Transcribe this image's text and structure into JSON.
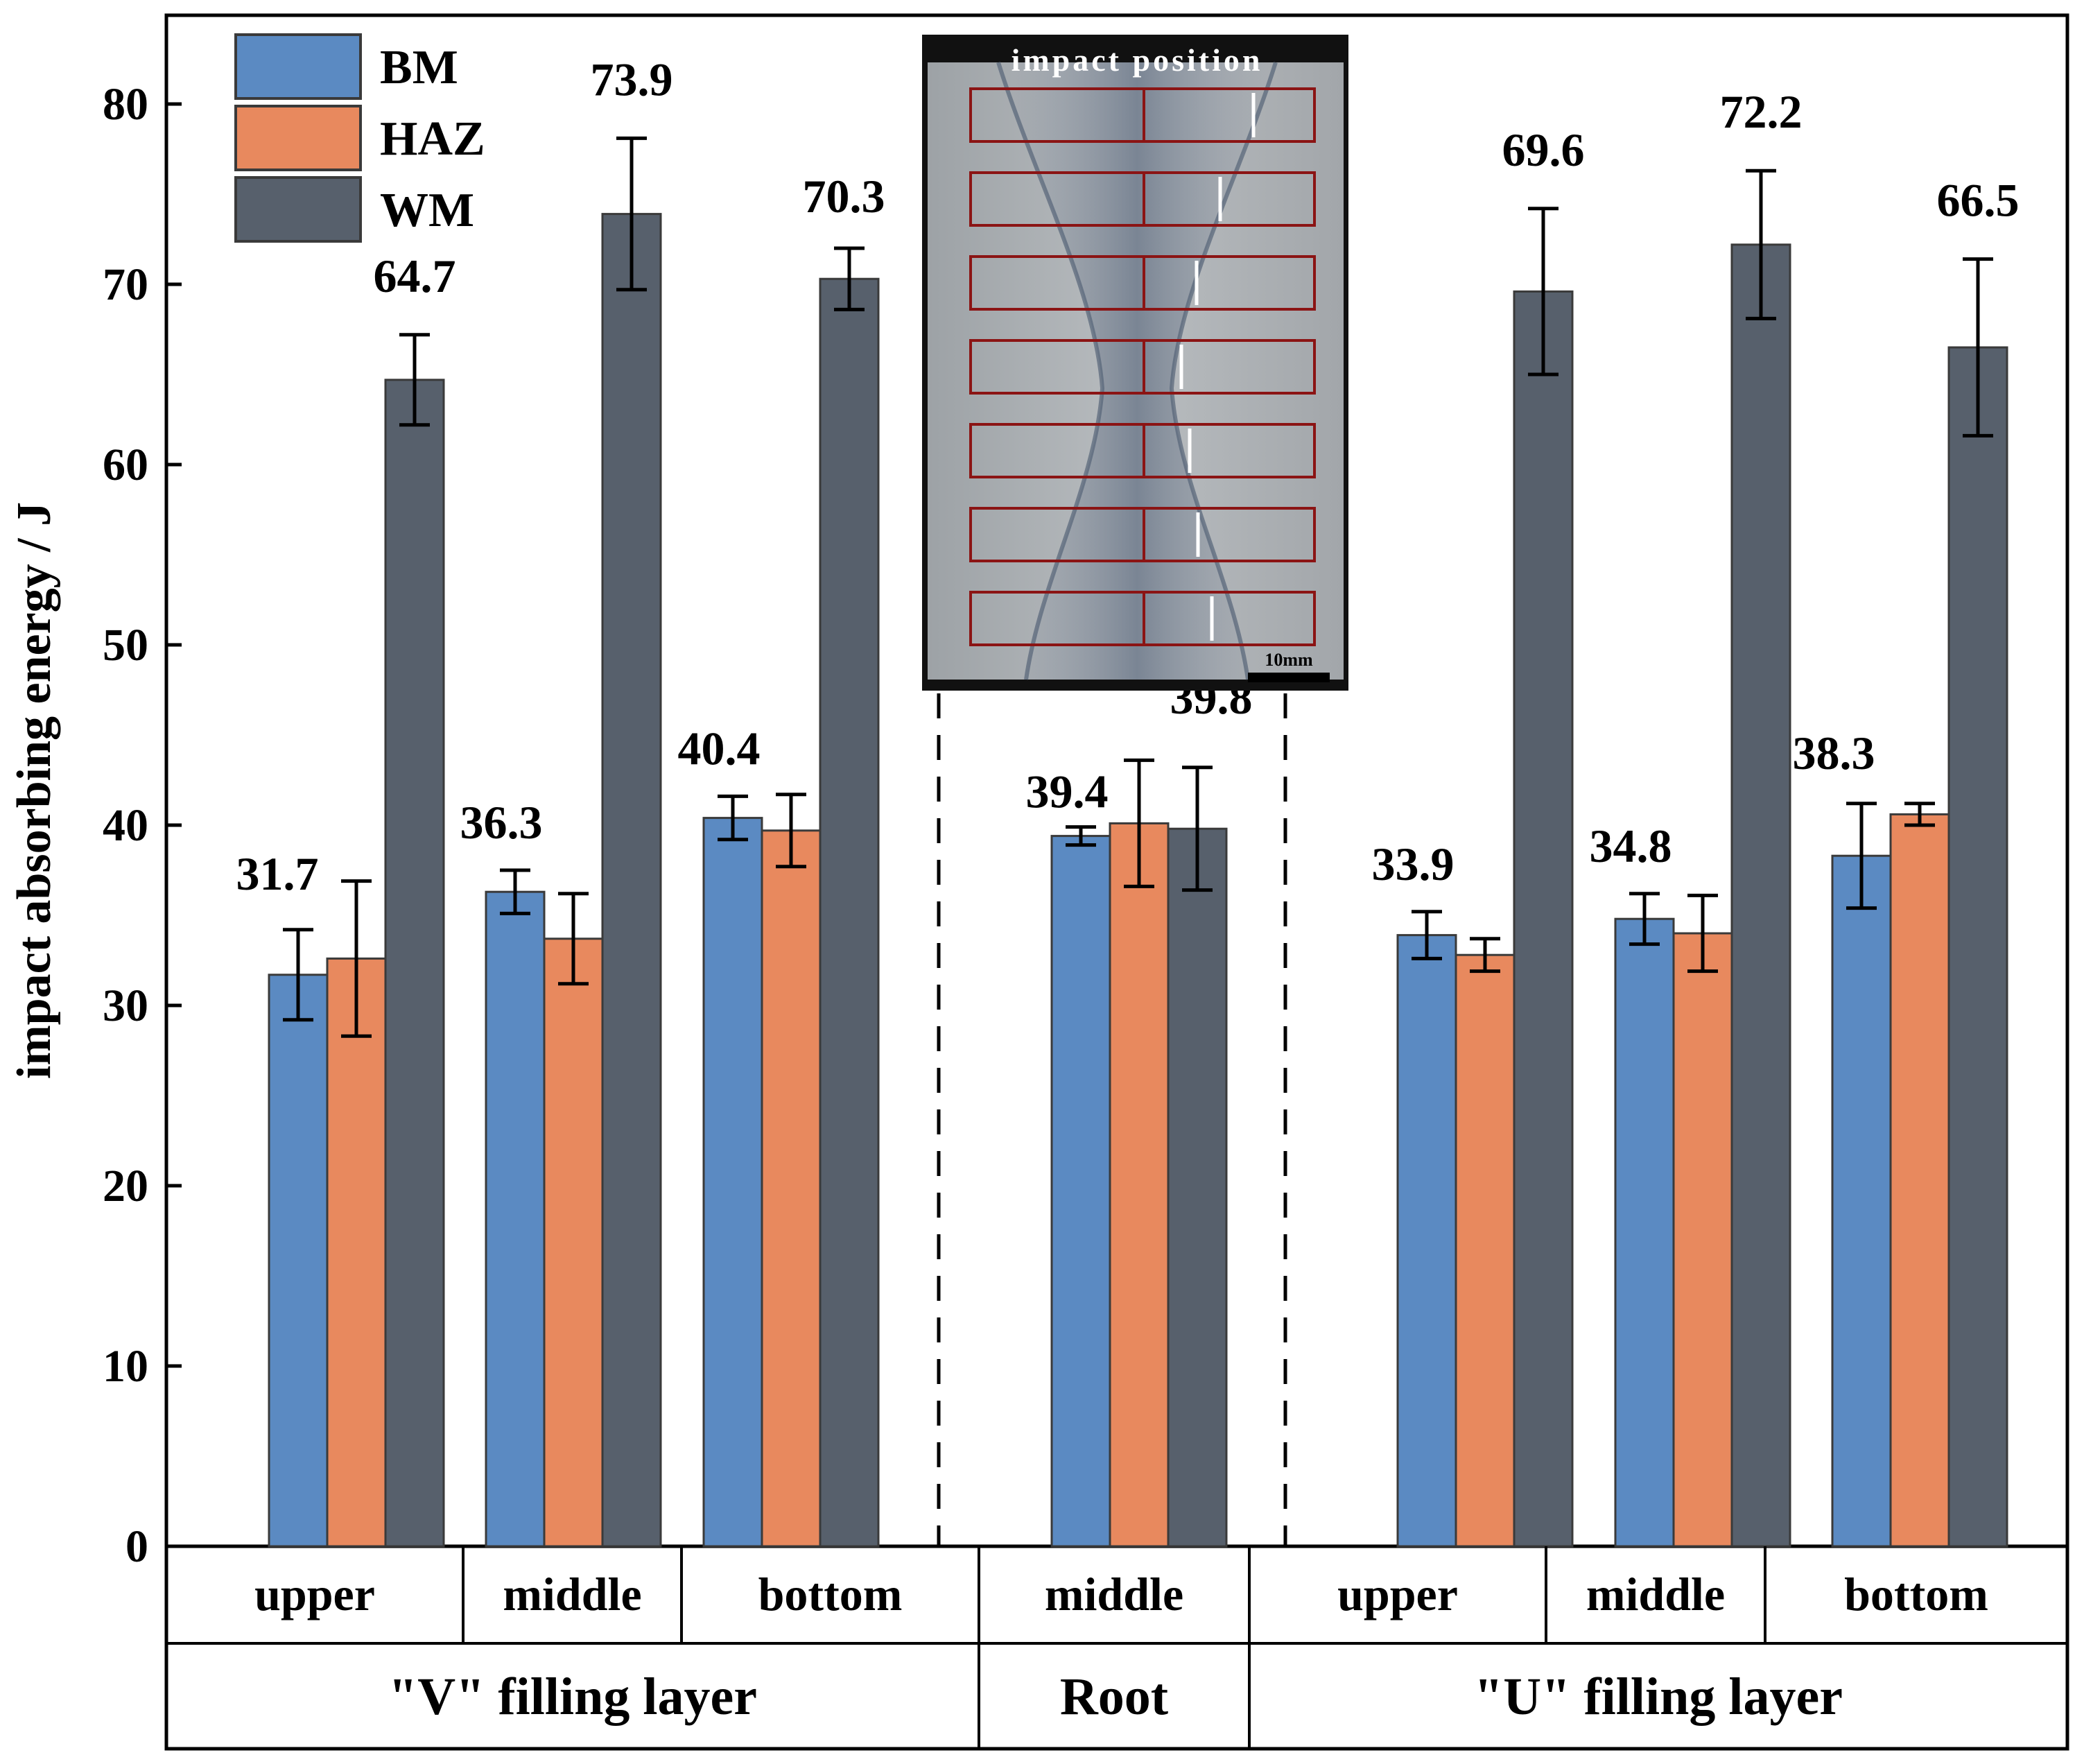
{
  "chart_data": {
    "type": "bar",
    "ylabel": "impact absorbing energy / J",
    "ylim": [
      0,
      85
    ],
    "yticks": [
      0,
      10,
      20,
      30,
      40,
      50,
      60,
      70,
      80
    ],
    "legend_position": "top-left",
    "series": [
      {
        "name": "BM",
        "color": "#5b8ac2"
      },
      {
        "name": "HAZ",
        "color": "#e8895e"
      },
      {
        "name": "WM",
        "color": "#57606c"
      }
    ],
    "categories": [
      {
        "label": "upper",
        "group": "\"V\" filling layer",
        "values": [
          31.7,
          32.6,
          64.7
        ],
        "errors": [
          2.5,
          4.3,
          2.5
        ],
        "labels": [
          "31.7",
          "",
          "64.7"
        ]
      },
      {
        "label": "middle",
        "group": "\"V\" filling layer",
        "values": [
          36.3,
          33.7,
          73.9
        ],
        "errors": [
          1.2,
          2.5,
          4.2
        ],
        "labels": [
          "36.3",
          "",
          "73.9"
        ]
      },
      {
        "label": "bottom",
        "group": "\"V\" filling layer",
        "values": [
          40.4,
          39.7,
          70.3
        ],
        "errors": [
          1.2,
          2.0,
          1.7
        ],
        "labels": [
          "40.4",
          "",
          "70.3"
        ]
      },
      {
        "label": "middle",
        "group": "Root",
        "values": [
          39.4,
          40.1,
          39.8
        ],
        "errors": [
          0.5,
          3.5,
          3.4
        ],
        "labels": [
          "39.4",
          "",
          "39.8"
        ]
      },
      {
        "label": "upper",
        "group": "\"U\" filling layer",
        "values": [
          33.9,
          32.8,
          69.6
        ],
        "errors": [
          1.3,
          0.9,
          4.6
        ],
        "labels": [
          "33.9",
          "",
          "69.6"
        ]
      },
      {
        "label": "middle",
        "group": "\"U\" filling layer",
        "values": [
          34.8,
          34.0,
          72.2
        ],
        "errors": [
          1.4,
          2.1,
          4.1
        ],
        "labels": [
          "34.8",
          "",
          "72.2"
        ]
      },
      {
        "label": "bottom",
        "group": "\"U\" filling layer",
        "values": [
          38.3,
          40.6,
          66.5
        ],
        "errors": [
          2.9,
          0.6,
          4.9
        ],
        "labels": [
          "38.3",
          "",
          "66.5"
        ]
      }
    ],
    "groups": [
      "\"V\" filling layer",
      "Root",
      "\"U\" filling layer"
    ],
    "inset": {
      "title": "impact position",
      "scale_label": "10mm",
      "rows": 7
    }
  }
}
